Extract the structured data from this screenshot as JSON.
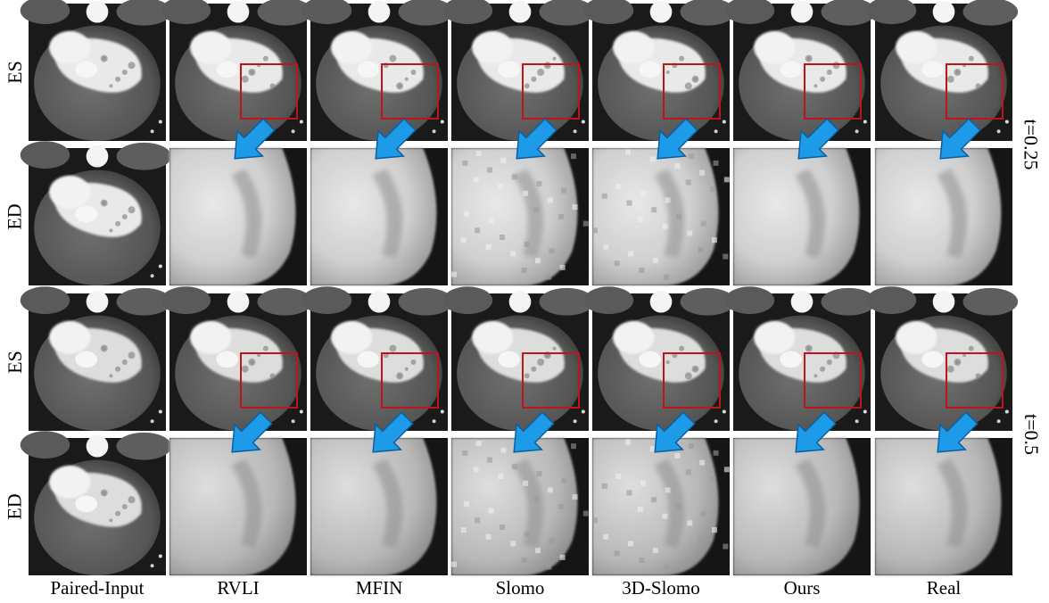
{
  "columns": [
    "Paired-Input",
    "RVLI",
    "MFIN",
    "Slomo",
    "3D-Slomo",
    "Ours",
    "Real"
  ],
  "groups": [
    {
      "t_label": "t=0.25",
      "row_labels": [
        "ES",
        "ED"
      ]
    },
    {
      "t_label": "t=0.5",
      "row_labels": [
        "ES",
        "ED"
      ]
    }
  ],
  "colors": {
    "roi_box": "#c0141c",
    "arrow_fill": "#1e9be8",
    "arrow_stroke": "#0b5f9e",
    "background": "#ffffff"
  },
  "icons": {
    "arrow": "down-left-arrow-icon",
    "roi": "red-square-box"
  }
}
